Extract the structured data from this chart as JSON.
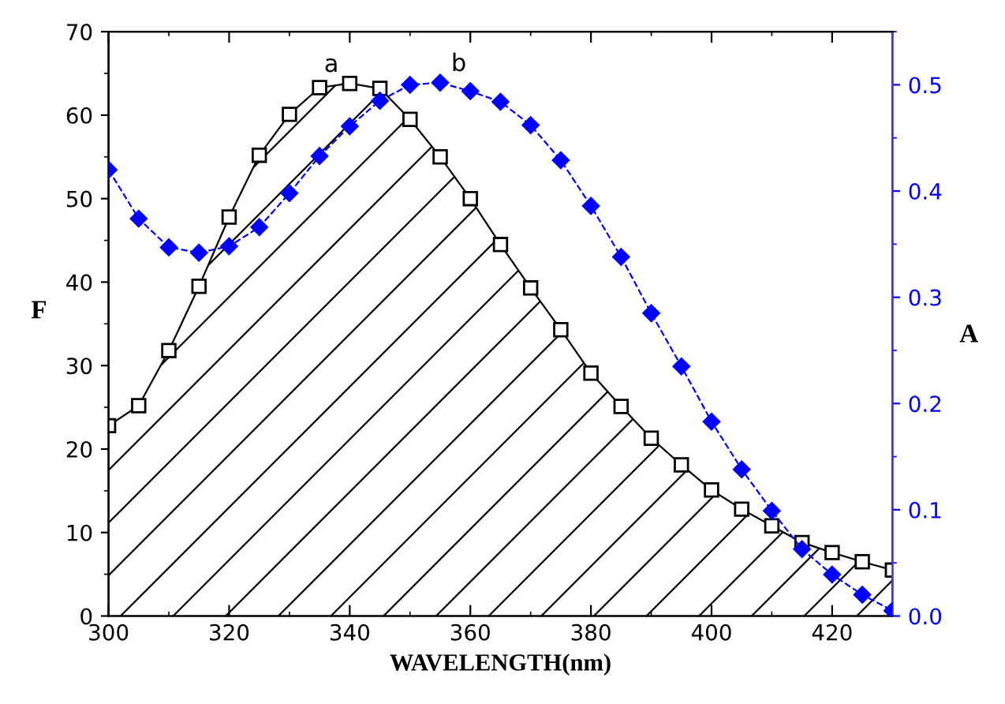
{
  "chart_data": {
    "type": "line",
    "xlabel": "WAVELENGTH(nm)",
    "ylabel": "F",
    "y2label": "A",
    "x": [
      300,
      305,
      310,
      315,
      320,
      325,
      330,
      335,
      340,
      345,
      350,
      355,
      360,
      365,
      370,
      375,
      380,
      385,
      390,
      395,
      400,
      405,
      410,
      415,
      420,
      425,
      430
    ],
    "series": [
      {
        "type": "area",
        "color": "#000000",
        "marker": "square",
        "line_style": "solid",
        "values": [
          22.8,
          25.2,
          31.8,
          39.5,
          47.8,
          55.2,
          60.1,
          63.3,
          63.8,
          63.2,
          59.5,
          55.0,
          50.0,
          44.5,
          39.3,
          34.3,
          29.1,
          25.1,
          21.3,
          18.1,
          15.1,
          12.8,
          10.8,
          8.8,
          7.6,
          6.5,
          5.5
        ]
      },
      {
        "color": "#0000ff",
        "marker": "diamond",
        "line_style": "dashed",
        "axis": "y2",
        "values": [
          0.42,
          0.374,
          0.347,
          0.342,
          0.348,
          0.366,
          0.398,
          0.433,
          0.461,
          0.485,
          0.5,
          0.502,
          0.494,
          0.484,
          0.462,
          0.429,
          0.386,
          0.338,
          0.285,
          0.235,
          0.183,
          0.138,
          0.099,
          0.063,
          0.039,
          0.02,
          0.005
        ]
      }
    ],
    "annotations": [
      "a",
      "b"
    ],
    "xlim": [
      300,
      430
    ],
    "xticks": [
      300,
      320,
      340,
      360,
      380,
      400,
      420
    ],
    "ylim": [
      0,
      70
    ],
    "yticks": [
      0,
      10,
      20,
      30,
      40,
      50,
      60,
      70
    ],
    "y2lim": [
      0,
      0.55
    ],
    "y2ticks": [
      {
        "value": 0,
        "label": "0.0"
      },
      0.1,
      0.2,
      0.3,
      0.4,
      0.5
    ],
    "grid": false,
    "legend": false
  }
}
